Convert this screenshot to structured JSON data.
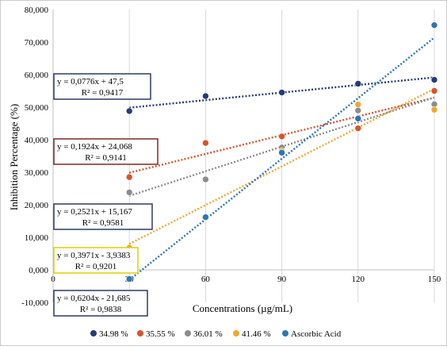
{
  "chart_data": {
    "type": "scatter",
    "xlabel": "Concentrations (µg/mL)",
    "ylabel": "Inhibition Percentage (%)",
    "x": [
      30,
      60,
      90,
      120,
      150
    ],
    "x_tick_labels": [
      "0",
      "30",
      "60",
      "90",
      "120",
      "150"
    ],
    "y_tick_labels": [
      "-10,000",
      "0,000",
      "10,000",
      "20,000",
      "30,000",
      "40,000",
      "50,000",
      "60,000",
      "70,000",
      "80,000"
    ],
    "xlim": [
      0,
      150
    ],
    "ylim": [
      -10,
      80
    ],
    "grid": "x-major",
    "legend_position": "bottom",
    "series": [
      {
        "name": "34.98 %",
        "color": "#253a7a",
        "values": [
          48.8,
          53.4,
          54.5,
          57.2,
          58.4
        ],
        "trendline": {
          "slope": 0.0776,
          "intercept": 47.5,
          "equation": "y = 0,0776x + 47,5",
          "r2": "R² = 0,9417",
          "box_border": "#2b3a67"
        }
      },
      {
        "name": "35.55 %",
        "color": "#d9532b",
        "values": [
          28.5,
          39.0,
          41.0,
          43.5,
          55.0
        ],
        "trendline": {
          "slope": 0.1924,
          "intercept": 24.068,
          "equation": "y = 0,1924x + 24,068",
          "r2": "R² = 0,9141",
          "box_border": "#7a2a1f"
        }
      },
      {
        "name": "36.01 %",
        "color": "#8c8c8c",
        "values": [
          23.8,
          27.8,
          37.6,
          49.0,
          50.9
        ],
        "trendline": {
          "slope": 0.2521,
          "intercept": 15.167,
          "equation": "y = 0,2521x + 15,167",
          "r2": "R² = 0,9581",
          "box_border": "#2b3a67"
        }
      },
      {
        "name": "41.46 %",
        "color": "#f0a830",
        "values": [
          6.8,
          16.0,
          36.5,
          50.8,
          49.2
        ],
        "trendline": {
          "slope": 0.3971,
          "intercept": -3.9383,
          "equation": "y = 0,3971x - 3,9383",
          "r2": "R² = 0,9201",
          "box_border": "#e0cf00"
        }
      },
      {
        "name": "Ascorbic Acid",
        "color": "#2e75b6",
        "values": [
          -2.8,
          16.2,
          36.0,
          46.5,
          75.2
        ],
        "trendline": {
          "slope": 0.6204,
          "intercept": -21.685,
          "equation": "y = 0,6204x - 21,685",
          "r2": "R² = 0,9838",
          "box_border": "#2b3a67"
        }
      }
    ]
  }
}
